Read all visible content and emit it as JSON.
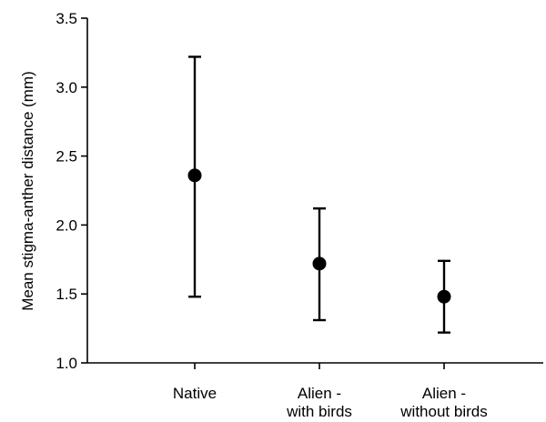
{
  "chart_data": {
    "type": "scatter",
    "title": "",
    "xlabel": "",
    "ylabel": "Mean stigma-anther distance (mm)",
    "ylim": [
      1.0,
      3.5
    ],
    "yticks": [
      1.0,
      1.5,
      2.0,
      2.5,
      3.0,
      3.5
    ],
    "ytick_labels": [
      "1.0",
      "1.5",
      "2.0",
      "2.5",
      "3.0",
      "3.5"
    ],
    "grid": false,
    "legend": "none",
    "categories": [
      {
        "line1": "Native",
        "line2": ""
      },
      {
        "line1": "Alien -",
        "line2": "with birds"
      },
      {
        "line1": "Alien -",
        "line2": "without birds"
      }
    ],
    "series": [
      {
        "values": [
          2.36,
          1.72,
          1.48
        ],
        "err_low": [
          1.48,
          1.31,
          1.22
        ],
        "err_high": [
          3.22,
          2.12,
          1.74
        ]
      }
    ],
    "colors": {
      "marker": "#000000",
      "axis": "#000000"
    }
  }
}
